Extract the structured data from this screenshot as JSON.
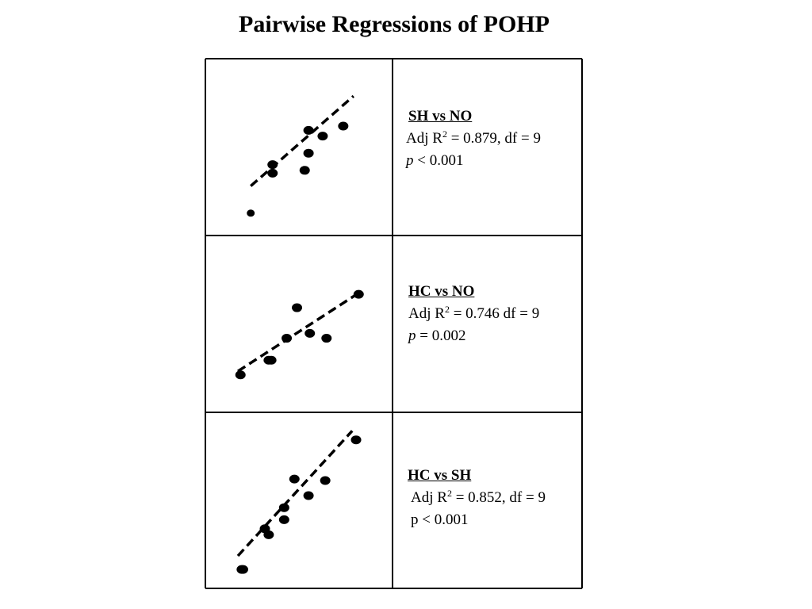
{
  "title": "Pairwise Regressions of POHP",
  "colors": {
    "ink": "#000000",
    "background": "#ffffff"
  },
  "panels": [
    {
      "heading": "SH vs NO",
      "adj_r2_prefix": "Adj R",
      "adj_r2_sup": "2",
      "adj_r2_text": " = 0.879, df = 9",
      "p_symbol": "p",
      "p_text": " < 0.001",
      "p_italic": true
    },
    {
      "heading": "HC vs NO",
      "adj_r2_prefix": "Adj R",
      "adj_r2_sup": "2",
      "adj_r2_text": " = 0.746 df = 9",
      "p_symbol": "p",
      "p_text": " = 0.002",
      "p_italic": true
    },
    {
      "heading": "HC vs SH",
      "adj_r2_prefix": "Adj R",
      "adj_r2_sup": "2",
      "adj_r2_text": " = 0.852, df = 9",
      "p_symbol": "p",
      "p_text": " < 0.001",
      "p_italic": false
    }
  ],
  "chart_data": [
    {
      "type": "scatter",
      "title": "",
      "xlabel": "",
      "ylabel": "",
      "axes_visible": false,
      "trendline": "dashed linear fit",
      "x": [
        1.0,
        2.7,
        2.7,
        5.2,
        5.5,
        5.5,
        6.6,
        8.2
      ],
      "y": [
        0.4,
        3.2,
        3.8,
        3.4,
        4.6,
        6.2,
        5.8,
        6.5
      ],
      "fit": {
        "x": [
          1.0,
          9.0
        ],
        "y": [
          2.3,
          8.6
        ]
      }
    },
    {
      "type": "scatter",
      "title": "",
      "xlabel": "",
      "ylabel": "",
      "axes_visible": false,
      "trendline": "dashed linear fit",
      "x": [
        0.2,
        2.4,
        2.6,
        3.8,
        4.6,
        5.6,
        6.9,
        9.4
      ],
      "y": [
        0.6,
        1.8,
        1.8,
        3.6,
        6.1,
        4.0,
        3.6,
        7.2
      ],
      "fit": {
        "x": [
          0.0,
          9.4
        ],
        "y": [
          0.9,
          7.3
        ]
      }
    },
    {
      "type": "scatter",
      "title": "",
      "xlabel": "",
      "ylabel": "",
      "axes_visible": false,
      "trendline": "dashed linear fit",
      "x": [
        0.3,
        0.4,
        2.1,
        2.4,
        3.6,
        3.6,
        4.4,
        5.5,
        6.8,
        9.2
      ],
      "y": [
        0.1,
        0.1,
        2.8,
        2.4,
        3.4,
        4.2,
        6.1,
        5.0,
        6.0,
        8.7
      ],
      "fit": {
        "x": [
          0.0,
          8.9
        ],
        "y": [
          1.0,
          9.3
        ]
      }
    }
  ]
}
